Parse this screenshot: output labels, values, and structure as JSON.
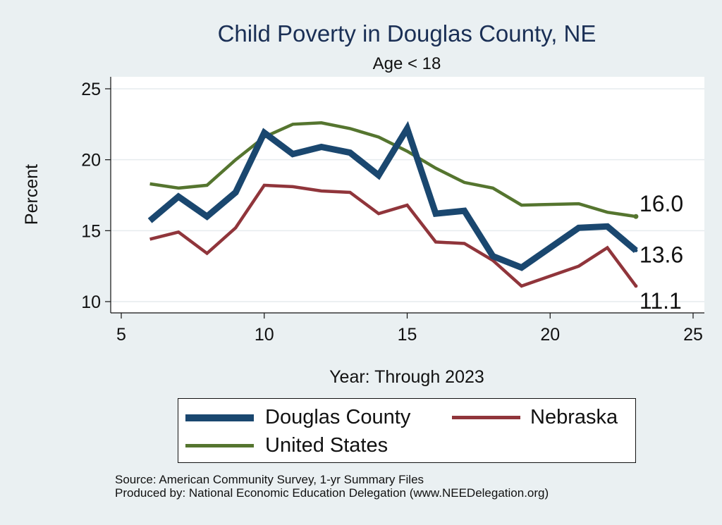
{
  "chart_data": {
    "type": "line",
    "title": "Child Poverty in Douglas County, NE",
    "subtitle": "Age < 18",
    "xlabel": "Year: Through 2023",
    "ylabel": "Percent",
    "xlim": [
      5,
      25
    ],
    "ylim": [
      10,
      25
    ],
    "xticks": [
      5,
      10,
      15,
      20,
      25
    ],
    "yticks": [
      10,
      15,
      20,
      25
    ],
    "grid": "horizontal",
    "legend_position": "bottom",
    "x": [
      6,
      7,
      8,
      9,
      10,
      11,
      12,
      13,
      14,
      15,
      16,
      17,
      18,
      19,
      21,
      22,
      23
    ],
    "series": [
      {
        "name": "Douglas County",
        "color": "#1a476f",
        "values": [
          15.7,
          17.4,
          16.0,
          17.7,
          21.9,
          20.4,
          20.9,
          20.5,
          18.9,
          22.2,
          16.2,
          16.4,
          13.2,
          12.4,
          15.2,
          15.3,
          13.6
        ],
        "end_label": "13.6"
      },
      {
        "name": "Nebraska",
        "color": "#90353b",
        "values": [
          14.4,
          14.9,
          13.4,
          15.2,
          18.2,
          18.1,
          17.8,
          17.7,
          16.2,
          16.8,
          14.2,
          14.1,
          12.9,
          11.1,
          12.5,
          13.8,
          11.1
        ],
        "end_label": "11.1"
      },
      {
        "name": "United States",
        "color": "#55752f",
        "values": [
          18.3,
          18.0,
          18.2,
          20.0,
          21.6,
          22.5,
          22.6,
          22.2,
          21.6,
          20.6,
          19.4,
          18.4,
          18.0,
          16.8,
          16.9,
          16.3,
          16.0
        ],
        "end_label": "16.0"
      }
    ]
  },
  "legend": {
    "items": [
      "Douglas County",
      "Nebraska",
      "United States"
    ]
  },
  "notes": {
    "source": "Source: American Community Survey, 1-yr Summary Files",
    "produced": "Produced by: National Economic Education Delegation (www.NEEDelegation.org)"
  },
  "colors": {
    "background": "#eaf0f2",
    "plot_area": "#ffffff",
    "title": "#1a2f55"
  }
}
